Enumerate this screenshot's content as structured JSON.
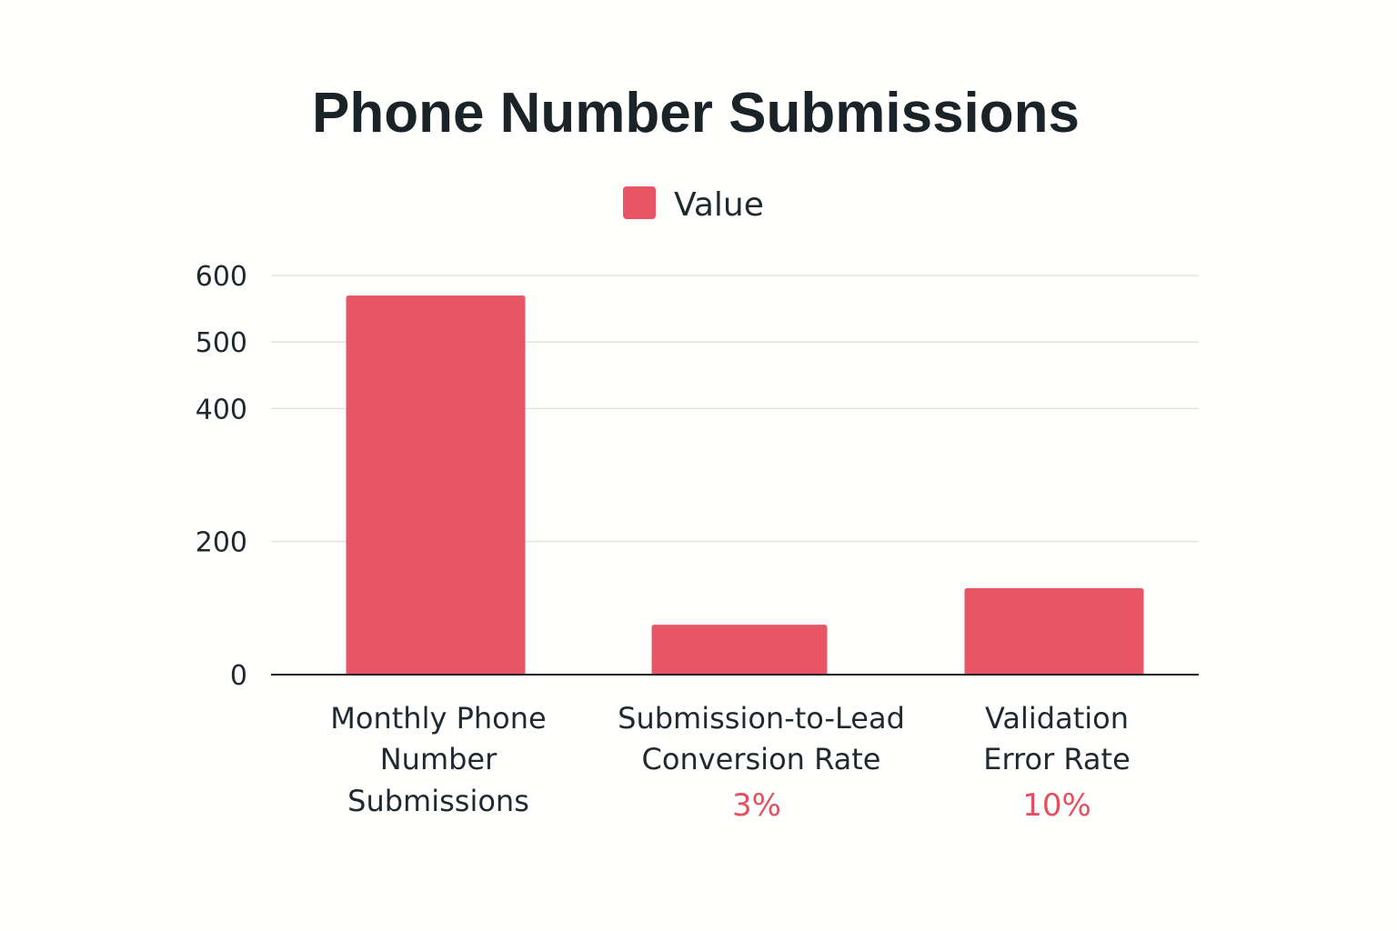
{
  "chart_data": {
    "type": "bar",
    "title": "Phone Number Submissions",
    "legend": {
      "position": "top-center",
      "entries": [
        "Value"
      ]
    },
    "categories": [
      [
        "Monthly Phone",
        "Number",
        "Submissions"
      ],
      [
        "Submission-to-Lead",
        "Conversion Rate"
      ],
      [
        "Validation",
        "Error Rate"
      ]
    ],
    "annotations": [
      "",
      "3%",
      "10%"
    ],
    "series": [
      {
        "name": "Value",
        "color": "#e85565",
        "values": [
          570,
          75,
          130
        ]
      }
    ],
    "yticks": [
      0,
      200,
      400,
      500,
      600
    ],
    "ylim": [
      0,
      600
    ],
    "grid": true,
    "xlabel": "",
    "ylabel": ""
  }
}
